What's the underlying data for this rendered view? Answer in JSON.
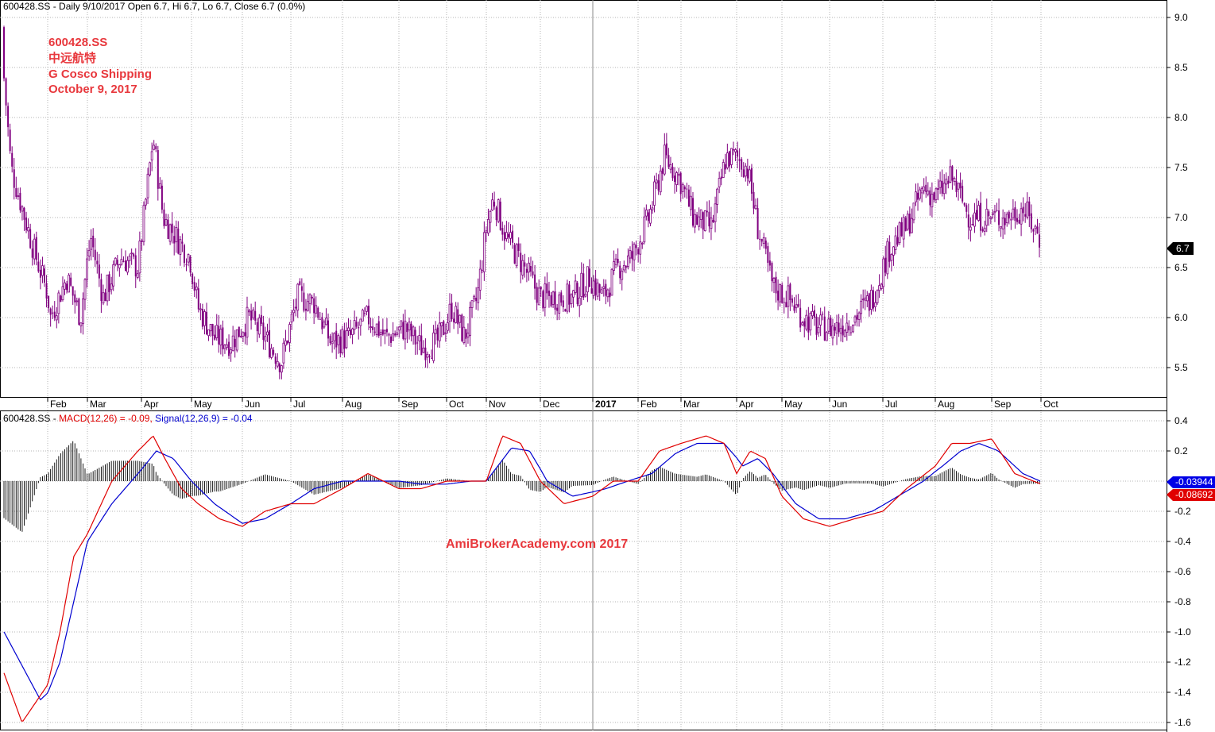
{
  "price_panel": {
    "header": "600428.SS - Daily 9/10/2017 Open 6.7, Hi 6.7, Lo 6.7, Close 6.7 (0.0%)",
    "annotation": [
      "600428.SS",
      "中远航特",
      "G Cosco Shipping",
      "October 9, 2017"
    ],
    "y_ticks": [
      "9.0",
      "8.5",
      "8.0",
      "7.5",
      "7.0",
      "6.5",
      "6.0",
      "5.5"
    ],
    "last_price_label": "6.7",
    "x_ticks": [
      "Feb",
      "Mar",
      "Apr",
      "May",
      "Jun",
      "Jul",
      "Aug",
      "Sep",
      "Oct",
      "Nov",
      "Dec",
      "2017",
      "Feb",
      "Mar",
      "Apr",
      "May",
      "Jun",
      "Jul",
      "Aug",
      "Sep",
      "Oct"
    ]
  },
  "macd_panel": {
    "header_prefix": "600428.SS - ",
    "macd_text": "MACD(12,26) = -0.09,",
    "signal_text": "Signal(12,26,9) = -0.04",
    "y_ticks": [
      "0.4",
      "0.2",
      "-0.2",
      "-0.4",
      "-0.6",
      "-0.8",
      "-1.0",
      "-1.2",
      "-1.4",
      "-1.6"
    ],
    "signal_label": "-0.03944",
    "macd_label": "-0.08692",
    "watermark": "AmiBrokerAcademy.com  2017"
  },
  "colors": {
    "candle": "#800080",
    "macd_line": "#e00000",
    "signal_line": "#0000d0",
    "histogram": "#000000",
    "annotation": "#e8383d",
    "grid": "#b4b4b4"
  },
  "chart_data": [
    {
      "type": "candlestick",
      "title": "600428.SS - Daily 9/10/2017 Open 6.7, Hi 6.7, Lo 6.7, Close 6.7 (0.0%)",
      "ylim": [
        5.2,
        9.2
      ],
      "grid": true,
      "x_anchors": [
        "2016-01-19",
        "2016-02-01",
        "2016-03-01",
        "2016-04-01",
        "2016-05-01",
        "2016-06-01",
        "2016-07-01",
        "2016-08-01",
        "2016-09-01",
        "2016-10-01",
        "2016-11-01",
        "2016-12-01",
        "2017-01-01",
        "2017-02-01",
        "2017-03-01",
        "2017-04-01",
        "2017-05-01",
        "2017-06-01",
        "2017-07-01",
        "2017-08-01",
        "2017-09-01",
        "2017-10-01"
      ],
      "close_path": {
        "x": [
          "2016-01-19",
          "2016-01-22",
          "2016-01-28",
          "2016-02-03",
          "2016-02-15",
          "2016-02-25",
          "2016-03-03",
          "2016-03-10",
          "2016-03-20",
          "2016-03-30",
          "2016-04-08",
          "2016-04-14",
          "2016-04-22",
          "2016-04-30",
          "2016-05-05",
          "2016-05-15",
          "2016-05-25",
          "2016-06-05",
          "2016-06-15",
          "2016-06-25",
          "2016-07-05",
          "2016-07-15",
          "2016-07-25",
          "2016-08-05",
          "2016-08-15",
          "2016-08-25",
          "2016-09-05",
          "2016-09-15",
          "2016-09-25",
          "2016-10-05",
          "2016-10-15",
          "2016-10-25",
          "2016-11-01",
          "2016-11-05",
          "2016-11-12",
          "2016-11-22",
          "2016-12-01",
          "2016-12-10",
          "2016-12-20",
          "2016-12-30",
          "2017-01-08",
          "2017-01-18",
          "2017-01-28",
          "2017-02-08",
          "2017-02-18",
          "2017-02-28",
          "2017-03-08",
          "2017-03-18",
          "2017-03-26",
          "2017-04-01",
          "2017-04-08",
          "2017-04-15",
          "2017-04-25",
          "2017-05-05",
          "2017-05-15",
          "2017-05-25",
          "2017-06-05",
          "2017-06-15",
          "2017-06-25",
          "2017-07-05",
          "2017-07-15",
          "2017-07-25",
          "2017-08-01",
          "2017-08-10",
          "2017-08-20",
          "2017-08-30",
          "2017-09-10",
          "2017-09-20",
          "2017-09-30",
          "2017-10-09"
        ],
        "y": [
          8.9,
          7.5,
          6.7,
          6.0,
          6.4,
          6.0,
          6.8,
          6.2,
          6.6,
          6.5,
          7.8,
          7.0,
          6.8,
          6.6,
          6.1,
          5.8,
          5.75,
          6.0,
          5.8,
          5.55,
          6.2,
          6.15,
          5.75,
          5.8,
          6.0,
          5.8,
          5.9,
          5.7,
          5.75,
          6.1,
          5.8,
          6.2,
          6.9,
          7.2,
          6.8,
          6.5,
          6.2,
          6.2,
          6.2,
          6.4,
          6.2,
          6.5,
          6.6,
          7.0,
          7.6,
          7.4,
          7.0,
          6.9,
          7.6,
          7.6,
          7.5,
          6.9,
          6.3,
          6.2,
          6.0,
          5.9,
          5.9,
          6.0,
          6.2,
          6.7,
          6.9,
          7.3,
          7.2,
          7.4,
          7.0,
          7.0,
          7.0,
          7.1,
          6.8,
          6.7
        ]
      },
      "last_value": 6.7
    },
    {
      "type": "line",
      "title": "MACD(12,26) = -0.09, Signal(12,26,9) = -0.04",
      "ylim": [
        -1.65,
        0.45
      ],
      "grid": true,
      "series": [
        {
          "name": "MACD(12,26)",
          "x": [
            "2016-01-19",
            "2016-01-25",
            "2016-02-01",
            "2016-02-10",
            "2016-02-20",
            "2016-03-01",
            "2016-03-15",
            "2016-03-30",
            "2016-04-08",
            "2016-04-15",
            "2016-04-25",
            "2016-05-05",
            "2016-05-18",
            "2016-06-01",
            "2016-06-15",
            "2016-07-01",
            "2016-07-15",
            "2016-08-01",
            "2016-08-15",
            "2016-09-01",
            "2016-09-15",
            "2016-10-01",
            "2016-10-20",
            "2016-11-01",
            "2016-11-10",
            "2016-11-20",
            "2016-12-01",
            "2016-12-15",
            "2017-01-01",
            "2017-01-15",
            "2017-02-01",
            "2017-02-15",
            "2017-03-01",
            "2017-03-15",
            "2017-03-25",
            "2017-04-01",
            "2017-04-10",
            "2017-04-20",
            "2017-05-01",
            "2017-05-15",
            "2017-06-01",
            "2017-06-15",
            "2017-07-01",
            "2017-07-15",
            "2017-08-01",
            "2017-08-10",
            "2017-08-20",
            "2017-09-01",
            "2017-09-15",
            "2017-10-01",
            "2017-10-09"
          ],
          "y": [
            -1.2,
            -1.6,
            -1.35,
            -1.0,
            -0.5,
            -0.35,
            0.0,
            0.2,
            0.3,
            0.15,
            -0.05,
            -0.15,
            -0.25,
            -0.3,
            -0.2,
            -0.15,
            -0.15,
            -0.05,
            0.05,
            -0.05,
            -0.05,
            0.0,
            0.0,
            0.0,
            0.3,
            0.25,
            0.0,
            -0.15,
            -0.1,
            0.0,
            0.0,
            0.2,
            0.25,
            0.3,
            0.25,
            0.05,
            0.2,
            0.15,
            -0.1,
            -0.25,
            -0.3,
            -0.25,
            -0.2,
            -0.05,
            0.1,
            0.25,
            0.25,
            0.28,
            0.05,
            -0.02,
            -0.09
          ]
        },
        {
          "name": "Signal(12,26,9)",
          "x": [
            "2016-01-19",
            "2016-01-30",
            "2016-02-10",
            "2016-02-20",
            "2016-03-01",
            "2016-03-15",
            "2016-03-30",
            "2016-04-10",
            "2016-04-20",
            "2016-05-01",
            "2016-05-15",
            "2016-06-01",
            "2016-06-15",
            "2016-07-01",
            "2016-07-15",
            "2016-08-01",
            "2016-08-15",
            "2016-09-01",
            "2016-09-15",
            "2016-10-01",
            "2016-10-20",
            "2016-11-01",
            "2016-11-15",
            "2016-11-25",
            "2016-12-05",
            "2016-12-20",
            "2017-01-10",
            "2017-01-25",
            "2017-02-10",
            "2017-02-25",
            "2017-03-10",
            "2017-03-25",
            "2017-04-05",
            "2017-04-15",
            "2017-04-25",
            "2017-05-10",
            "2017-05-25",
            "2017-06-10",
            "2017-06-25",
            "2017-07-10",
            "2017-07-25",
            "2017-08-05",
            "2017-08-15",
            "2017-08-25",
            "2017-09-05",
            "2017-09-20",
            "2017-10-09"
          ],
          "y": [
            -0.95,
            -1.45,
            -1.2,
            -0.8,
            -0.4,
            -0.15,
            0.05,
            0.2,
            0.15,
            0.0,
            -0.15,
            -0.28,
            -0.25,
            -0.15,
            -0.05,
            0.0,
            0.0,
            0.0,
            -0.02,
            -0.02,
            0.0,
            0.0,
            0.22,
            0.2,
            0.0,
            -0.1,
            -0.05,
            0.0,
            0.05,
            0.18,
            0.25,
            0.25,
            0.1,
            0.15,
            0.05,
            -0.15,
            -0.25,
            -0.25,
            -0.2,
            -0.1,
            0.0,
            0.1,
            0.2,
            0.25,
            0.2,
            0.05,
            -0.04
          ]
        }
      ],
      "histogram": "MACD minus Signal",
      "last_values": {
        "MACD(12,26)": -0.08692,
        "Signal(12,26,9)": -0.03944
      }
    }
  ]
}
